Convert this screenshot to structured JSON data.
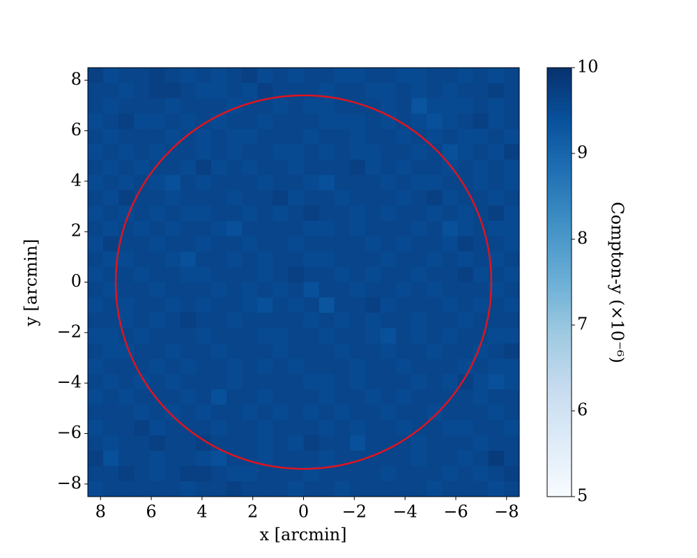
{
  "chart_data": {
    "type": "heatmap",
    "xlabel": "x [arcmin]",
    "ylabel": "y [arcmin]",
    "xlim": [
      8.5,
      -8.5
    ],
    "ylim": [
      -8.5,
      8.5
    ],
    "xticks": [
      8,
      6,
      4,
      2,
      0,
      {
        "value": -2,
        "label": "−2"
      },
      {
        "value": -4,
        "label": "−4"
      },
      {
        "value": -6,
        "label": "−6"
      },
      {
        "value": -8,
        "label": "−8"
      }
    ],
    "yticks": [
      {
        "value": -8,
        "label": "−8"
      },
      {
        "value": -6,
        "label": "−6"
      },
      {
        "value": -4,
        "label": "−4"
      },
      {
        "value": -2,
        "label": "−2"
      },
      0,
      2,
      4,
      6,
      8
    ],
    "cmap": "Blues",
    "colorbar": {
      "label": "Compton-y (×10⁻⁶)",
      "lim": [
        5,
        10
      ],
      "ticks": [
        5,
        6,
        7,
        8,
        9,
        10
      ]
    },
    "circle": {
      "center": [
        0,
        0
      ],
      "radius": 7.4,
      "color": "#e0141e"
    },
    "z": [
      [
        9.7,
        9.5,
        9.6,
        9.6,
        9.7,
        9.6,
        9.5,
        9.6,
        9.5,
        9.6,
        9.7,
        9.5,
        9.6,
        9.5,
        9.6,
        9.6,
        9.5,
        9.5,
        9.6,
        9.6,
        9.5,
        9.5,
        9.6,
        9.6,
        9.5,
        9.6,
        9.5,
        9.6
      ],
      [
        9.6,
        9.6,
        9.5,
        9.6,
        9.7,
        9.7,
        9.6,
        9.5,
        9.5,
        9.6,
        9.5,
        9.7,
        9.6,
        9.6,
        9.6,
        9.5,
        9.6,
        9.6,
        9.5,
        9.5,
        9.6,
        9.5,
        9.6,
        9.5,
        9.6,
        9.6,
        9.7,
        9.6
      ],
      [
        9.6,
        9.5,
        9.6,
        9.6,
        9.6,
        9.5,
        9.6,
        9.6,
        9.6,
        9.5,
        9.6,
        9.6,
        9.5,
        9.6,
        9.5,
        9.5,
        9.6,
        9.6,
        9.6,
        9.5,
        9.6,
        9.3,
        9.5,
        9.5,
        9.5,
        9.6,
        9.5,
        9.6
      ],
      [
        9.5,
        9.6,
        9.7,
        9.5,
        9.5,
        9.6,
        9.5,
        9.6,
        9.5,
        9.6,
        9.6,
        9.5,
        9.6,
        9.6,
        9.6,
        9.5,
        9.5,
        9.5,
        9.6,
        9.5,
        9.6,
        9.5,
        9.4,
        9.5,
        9.6,
        9.7,
        9.5,
        9.6
      ],
      [
        9.6,
        9.5,
        9.6,
        9.6,
        9.6,
        9.5,
        9.6,
        9.5,
        9.6,
        9.5,
        9.5,
        9.6,
        9.6,
        9.6,
        9.5,
        9.6,
        9.6,
        9.5,
        9.6,
        9.6,
        9.5,
        9.6,
        9.5,
        9.6,
        9.5,
        9.5,
        9.6,
        9.5
      ],
      [
        9.5,
        9.6,
        9.5,
        9.6,
        9.5,
        9.6,
        9.6,
        9.5,
        9.6,
        9.5,
        9.6,
        9.6,
        9.5,
        9.5,
        9.6,
        9.5,
        9.6,
        9.5,
        9.5,
        9.6,
        9.6,
        9.5,
        9.6,
        9.4,
        9.5,
        9.6,
        9.5,
        9.7
      ],
      [
        9.6,
        9.5,
        9.6,
        9.5,
        9.6,
        9.6,
        9.5,
        9.7,
        9.5,
        9.6,
        9.5,
        9.6,
        9.6,
        9.5,
        9.6,
        9.6,
        9.6,
        9.7,
        9.5,
        9.6,
        9.5,
        9.6,
        9.6,
        9.5,
        9.6,
        9.5,
        9.6,
        9.5
      ],
      [
        9.5,
        9.6,
        9.5,
        9.6,
        9.5,
        9.4,
        9.6,
        9.5,
        9.6,
        9.6,
        9.6,
        9.5,
        9.6,
        9.6,
        9.5,
        9.4,
        9.6,
        9.6,
        9.6,
        9.5,
        9.6,
        9.5,
        9.5,
        9.6,
        9.6,
        9.5,
        9.6,
        9.5
      ],
      [
        9.6,
        9.5,
        9.7,
        9.6,
        9.6,
        9.5,
        9.6,
        9.6,
        9.6,
        9.5,
        9.6,
        9.6,
        9.7,
        9.5,
        9.6,
        9.6,
        9.5,
        9.6,
        9.6,
        9.6,
        9.5,
        9.6,
        9.7,
        9.5,
        9.6,
        9.6,
        9.5,
        9.6
      ],
      [
        9.5,
        9.6,
        9.5,
        9.6,
        9.5,
        9.6,
        9.5,
        9.5,
        9.6,
        9.6,
        9.5,
        9.6,
        9.5,
        9.6,
        9.7,
        9.6,
        9.6,
        9.5,
        9.6,
        9.5,
        9.6,
        9.6,
        9.5,
        9.6,
        9.5,
        9.6,
        9.7,
        9.5
      ],
      [
        9.6,
        9.5,
        9.6,
        9.5,
        9.6,
        9.5,
        9.6,
        9.6,
        9.5,
        9.4,
        9.6,
        9.6,
        9.6,
        9.6,
        9.5,
        9.5,
        9.6,
        9.5,
        9.6,
        9.6,
        9.6,
        9.5,
        9.6,
        9.4,
        9.5,
        9.6,
        9.5,
        9.5
      ],
      [
        9.5,
        9.7,
        9.6,
        9.6,
        9.5,
        9.6,
        9.6,
        9.5,
        9.6,
        9.6,
        9.5,
        9.6,
        9.6,
        9.5,
        9.6,
        9.6,
        9.6,
        9.6,
        9.5,
        9.6,
        9.5,
        9.6,
        9.6,
        9.5,
        9.7,
        9.6,
        9.6,
        9.5
      ],
      [
        9.6,
        9.5,
        9.5,
        9.6,
        9.6,
        9.5,
        9.4,
        9.6,
        9.6,
        9.5,
        9.6,
        9.5,
        9.6,
        9.6,
        9.5,
        9.5,
        9.6,
        9.6,
        9.6,
        9.5,
        9.6,
        9.6,
        9.5,
        9.6,
        9.5,
        9.6,
        9.5,
        9.6
      ],
      [
        9.5,
        9.6,
        9.6,
        9.5,
        9.6,
        9.6,
        9.5,
        9.5,
        9.6,
        9.6,
        9.6,
        9.5,
        9.6,
        9.7,
        9.6,
        9.6,
        9.5,
        9.6,
        9.5,
        9.6,
        9.6,
        9.5,
        9.6,
        9.6,
        9.7,
        9.5,
        9.6,
        9.5
      ],
      [
        9.6,
        9.5,
        9.6,
        9.6,
        9.5,
        9.6,
        9.6,
        9.6,
        9.5,
        9.6,
        9.5,
        9.6,
        9.5,
        9.6,
        9.4,
        9.6,
        9.6,
        9.5,
        9.6,
        9.6,
        9.5,
        9.6,
        9.5,
        9.6,
        9.6,
        9.6,
        9.5,
        9.6
      ],
      [
        9.5,
        9.6,
        9.5,
        9.6,
        9.6,
        9.5,
        9.6,
        9.5,
        9.6,
        9.6,
        9.5,
        9.4,
        9.6,
        9.5,
        9.6,
        9.3,
        9.6,
        9.6,
        9.7,
        9.5,
        9.6,
        9.6,
        9.6,
        9.5,
        9.6,
        9.5,
        9.6,
        9.5
      ],
      [
        9.6,
        9.6,
        9.5,
        9.6,
        9.5,
        9.6,
        9.7,
        9.6,
        9.6,
        9.5,
        9.6,
        9.6,
        9.6,
        9.6,
        9.5,
        9.6,
        9.5,
        9.6,
        9.5,
        9.6,
        9.6,
        9.5,
        9.6,
        9.6,
        9.5,
        9.6,
        9.6,
        9.6
      ],
      [
        9.5,
        9.5,
        9.6,
        9.5,
        9.6,
        9.6,
        9.6,
        9.5,
        9.6,
        9.6,
        9.6,
        9.5,
        9.5,
        9.6,
        9.6,
        9.5,
        9.6,
        9.6,
        9.5,
        9.4,
        9.6,
        9.5,
        9.6,
        9.5,
        9.6,
        9.6,
        9.5,
        9.5
      ],
      [
        9.6,
        9.5,
        9.5,
        9.6,
        9.6,
        9.5,
        9.6,
        9.6,
        9.5,
        9.6,
        9.6,
        9.6,
        9.5,
        9.6,
        9.6,
        9.6,
        9.5,
        9.6,
        9.6,
        9.5,
        9.6,
        9.6,
        9.5,
        9.6,
        9.6,
        9.5,
        9.6,
        9.7
      ],
      [
        9.5,
        9.6,
        9.6,
        9.6,
        9.5,
        9.6,
        9.5,
        9.6,
        9.6,
        9.5,
        9.6,
        9.5,
        9.6,
        9.5,
        9.6,
        9.6,
        9.6,
        9.5,
        9.6,
        9.6,
        9.5,
        9.6,
        9.6,
        9.6,
        9.5,
        9.6,
        9.5,
        9.5
      ],
      [
        9.6,
        9.5,
        9.6,
        9.5,
        9.6,
        9.5,
        9.6,
        9.6,
        9.6,
        9.5,
        9.6,
        9.6,
        9.6,
        9.6,
        9.5,
        9.5,
        9.6,
        9.5,
        9.6,
        9.6,
        9.6,
        9.5,
        9.6,
        9.5,
        9.7,
        9.5,
        9.4,
        9.5
      ],
      [
        9.5,
        9.6,
        9.5,
        9.6,
        9.6,
        9.6,
        9.5,
        9.6,
        9.4,
        9.6,
        9.6,
        9.5,
        9.6,
        9.6,
        9.6,
        9.5,
        9.6,
        9.6,
        9.5,
        9.6,
        9.5,
        9.6,
        9.6,
        9.6,
        9.6,
        9.5,
        9.6,
        9.6
      ],
      [
        9.6,
        9.6,
        9.6,
        9.5,
        9.6,
        9.5,
        9.6,
        9.5,
        9.6,
        9.6,
        9.5,
        9.6,
        9.5,
        9.6,
        9.5,
        9.6,
        9.5,
        9.6,
        9.6,
        9.5,
        9.6,
        9.6,
        9.5,
        9.6,
        9.6,
        9.6,
        9.5,
        9.6
      ],
      [
        9.5,
        9.6,
        9.6,
        9.7,
        9.5,
        9.6,
        9.6,
        9.6,
        9.5,
        9.6,
        9.6,
        9.5,
        9.6,
        9.6,
        9.6,
        9.5,
        9.6,
        9.5,
        9.6,
        9.6,
        9.5,
        9.6,
        9.6,
        9.5,
        9.5,
        9.6,
        9.6,
        9.5
      ],
      [
        9.6,
        9.5,
        9.6,
        9.6,
        9.7,
        9.6,
        9.6,
        9.7,
        9.6,
        9.6,
        9.6,
        9.5,
        9.6,
        9.5,
        9.7,
        9.6,
        9.6,
        9.4,
        9.6,
        9.6,
        9.6,
        9.5,
        9.6,
        9.6,
        9.6,
        9.5,
        9.6,
        9.6
      ],
      [
        9.7,
        9.4,
        9.6,
        9.6,
        9.5,
        9.6,
        9.6,
        9.5,
        9.4,
        9.6,
        9.6,
        9.5,
        9.6,
        9.6,
        9.6,
        9.5,
        9.6,
        9.6,
        9.6,
        9.6,
        9.6,
        9.5,
        9.6,
        9.6,
        9.5,
        9.6,
        9.8,
        9.6
      ],
      [
        9.6,
        9.6,
        9.7,
        9.6,
        9.5,
        9.6,
        9.7,
        9.7,
        9.6,
        9.5,
        9.5,
        9.6,
        9.6,
        9.6,
        9.5,
        9.6,
        9.6,
        9.6,
        9.6,
        9.5,
        9.6,
        9.6,
        9.6,
        9.5,
        9.6,
        9.5,
        9.6,
        9.7
      ],
      [
        9.5,
        9.6,
        9.6,
        9.6,
        9.6,
        9.6,
        9.5,
        9.6,
        9.6,
        9.7,
        9.6,
        9.6,
        9.6,
        9.5,
        9.6,
        9.6,
        9.5,
        9.6,
        9.6,
        9.6,
        9.6,
        9.6,
        9.5,
        9.6,
        9.6,
        9.6,
        9.5,
        9.6
      ]
    ]
  }
}
